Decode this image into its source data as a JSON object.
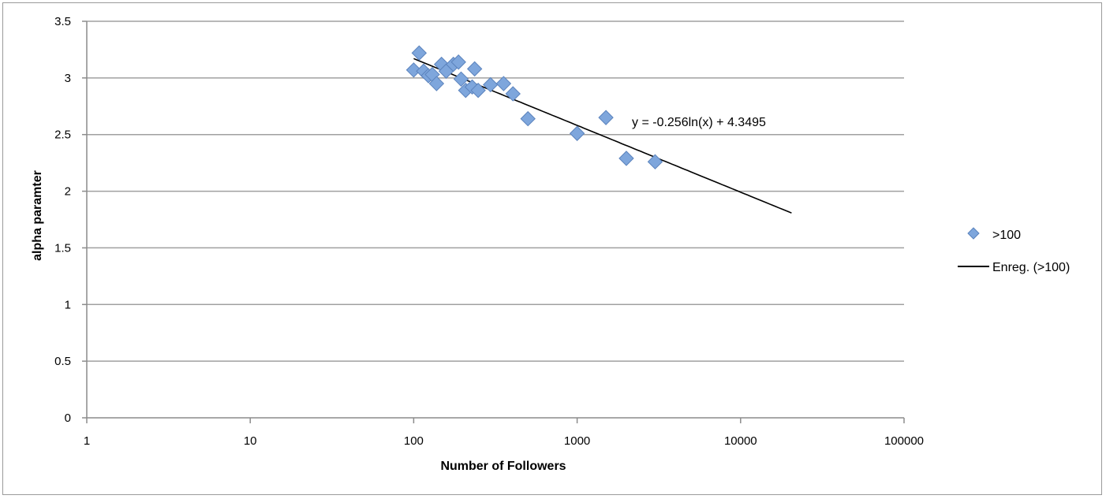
{
  "chart_data": {
    "type": "scatter",
    "xlabel": "Number of Followers",
    "ylabel": "alpha paramter",
    "x_scale": "log",
    "xlim": [
      1,
      100000
    ],
    "ylim": [
      0,
      3.5
    ],
    "x_ticks": [
      "1",
      "10",
      "100",
      "1000",
      "10000",
      "100000"
    ],
    "y_ticks": [
      "0",
      "0.5",
      "1",
      "1.5",
      "2",
      "2.5",
      "3",
      "3.5"
    ],
    "grid": "horizontal",
    "legend_position": "right",
    "series": [
      {
        "name": ">100",
        "marker": "diamond",
        "color": "#7ea6dc",
        "points": [
          {
            "x": 100,
            "y": 3.07
          },
          {
            "x": 108,
            "y": 3.22
          },
          {
            "x": 115,
            "y": 3.06
          },
          {
            "x": 123,
            "y": 3.02
          },
          {
            "x": 130,
            "y": 3.03
          },
          {
            "x": 138,
            "y": 2.95
          },
          {
            "x": 148,
            "y": 3.12
          },
          {
            "x": 158,
            "y": 3.06
          },
          {
            "x": 175,
            "y": 3.12
          },
          {
            "x": 188,
            "y": 3.14
          },
          {
            "x": 195,
            "y": 2.99
          },
          {
            "x": 208,
            "y": 2.89
          },
          {
            "x": 228,
            "y": 2.92
          },
          {
            "x": 236,
            "y": 3.08
          },
          {
            "x": 248,
            "y": 2.89
          },
          {
            "x": 295,
            "y": 2.94
          },
          {
            "x": 355,
            "y": 2.95
          },
          {
            "x": 405,
            "y": 2.86
          },
          {
            "x": 500,
            "y": 2.64
          },
          {
            "x": 1000,
            "y": 2.51
          },
          {
            "x": 1500,
            "y": 2.65
          },
          {
            "x": 2000,
            "y": 2.29
          },
          {
            "x": 3000,
            "y": 2.26
          }
        ]
      }
    ],
    "trendline": {
      "name": "Enreg. (>100)",
      "type": "logarithmic",
      "slope": -0.256,
      "intercept": 4.3495,
      "x_range": [
        100,
        20500
      ],
      "color": "#000000",
      "equation_label": "y = -0.256ln(x) + 4.3495"
    }
  }
}
